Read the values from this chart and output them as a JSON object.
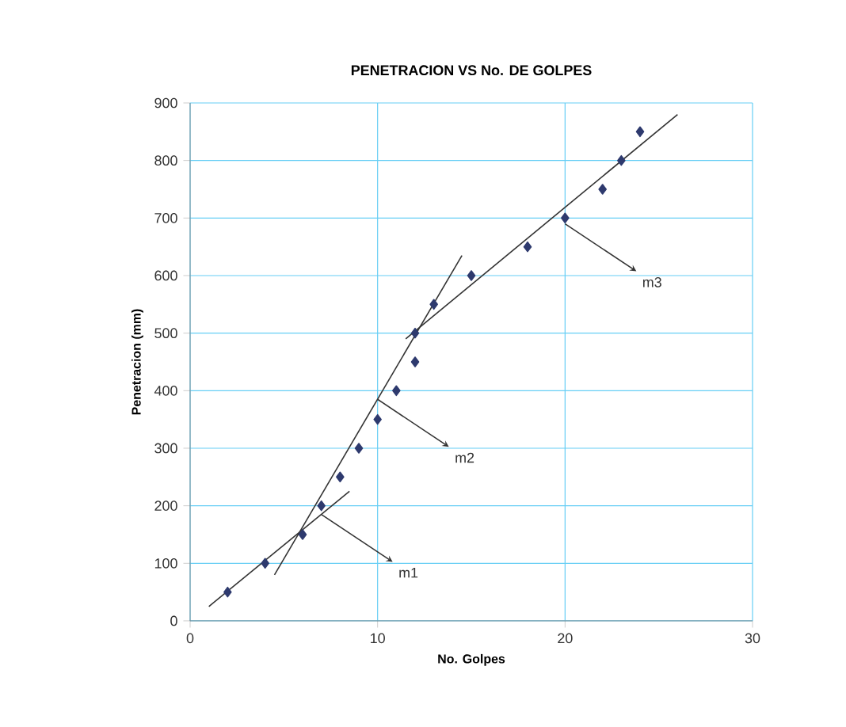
{
  "chart_data": {
    "type": "scatter",
    "title": "PENETRACION VS No. DE GOLPES",
    "xlabel": "No. Golpes",
    "ylabel": "Penetracion (mm)",
    "xlim": [
      0,
      30
    ],
    "ylim": [
      0,
      900
    ],
    "xticks": [
      0,
      10,
      20,
      30
    ],
    "yticks": [
      0,
      100,
      200,
      300,
      400,
      500,
      600,
      700,
      800,
      900
    ],
    "grid": true,
    "marker": "diamond",
    "series": [
      {
        "color": "#2e3a6e",
        "x": [
          2,
          4,
          6,
          7,
          8,
          9,
          10,
          11,
          12,
          12,
          13,
          15,
          18,
          20,
          22,
          23,
          24
        ],
        "values": [
          50,
          100,
          150,
          200,
          250,
          300,
          350,
          400,
          450,
          500,
          550,
          600,
          650,
          700,
          750,
          800,
          850
        ]
      },
      {
        "type": "line",
        "color": "#333333",
        "marker": "none",
        "x": [
          1,
          8.5
        ],
        "values": [
          25,
          225
        ]
      },
      {
        "type": "line",
        "color": "#333333",
        "marker": "none",
        "x": [
          4.5,
          14.5
        ],
        "values": [
          80,
          635
        ]
      },
      {
        "type": "line",
        "color": "#333333",
        "marker": "none",
        "x": [
          11.5,
          26
        ],
        "values": [
          490,
          880
        ]
      }
    ],
    "annotations": [
      {
        "text": "m1",
        "x": 7,
        "y": 185
      },
      {
        "text": "m2",
        "x": 10,
        "y": 385
      },
      {
        "text": "m3",
        "x": 20,
        "y": 690
      }
    ]
  }
}
